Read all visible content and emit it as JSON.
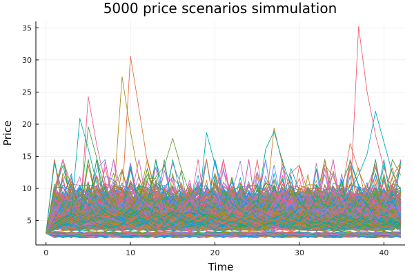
{
  "chart_data": {
    "type": "line",
    "title": "5000 price scenarios simmulation",
    "xlabel": "Time",
    "ylabel": "Price",
    "xlim": [
      -1.2,
      42.5
    ],
    "ylim": [
      1.2,
      36.0
    ],
    "x_ticks": [
      0,
      10,
      20,
      30,
      40
    ],
    "y_ticks": [
      5,
      10,
      15,
      20,
      25,
      30,
      35
    ],
    "grid": true,
    "legend": "none",
    "scenario_count": 5000,
    "time_steps": 42,
    "start_value": 3.0,
    "palette": [
      "#e26f46",
      "#3da44d",
      "#c271d2",
      "#ac8d18",
      "#00a9ad",
      "#ed5e93",
      "#009af9",
      "#c68125",
      "#00a98d",
      "#8e971d",
      "#00a8cb",
      "#9b7fe8",
      "#618df6",
      "#f05f73",
      "#dd64b5",
      "#6b9e32"
    ],
    "series": [
      {
        "values": [
          3.0,
          4.8,
          5.1,
          7.2,
          5.4,
          24.3,
          16.8,
          10.9,
          6.7,
          5.9,
          7.7,
          6.8,
          5.5,
          4.4,
          4.0,
          5.1,
          7.9,
          6.0,
          4.8,
          5.8,
          6.2,
          5.1,
          4.4,
          4.9,
          4.0,
          5.6,
          5.2,
          4.3,
          4.9,
          6.4,
          5.1,
          4.6,
          3.9,
          5.2,
          4.8,
          3.9,
          4.2,
          5.6,
          4.7,
          3.8,
          4.5,
          3.9,
          4.3
        ],
        "color": "#ed5e93"
      },
      {
        "values": [
          3.0,
          4.1,
          5.8,
          4.7,
          6.9,
          5.1,
          7.4,
          6.2,
          8.3,
          27.4,
          18.9,
          11.6,
          8.2,
          6.4,
          5.7,
          5.1,
          6.0,
          7.3,
          5.8,
          4.9,
          5.6,
          6.3,
          5.1,
          4.7,
          4.2,
          5.3,
          4.6,
          6.1,
          5.5,
          4.2,
          4.8,
          5.3,
          4.4,
          3.9,
          4.7,
          5.2,
          4.1,
          4.8,
          5.5,
          4.3,
          4.0,
          4.6,
          4.2
        ],
        "color": "#ac8d18"
      },
      {
        "values": [
          3.0,
          3.9,
          4.6,
          5.3,
          4.8,
          5.7,
          6.6,
          5.9,
          7.1,
          8.4,
          30.6,
          22.4,
          14.1,
          9.3,
          7.6,
          6.2,
          5.4,
          6.1,
          5.3,
          4.9,
          5.8,
          4.6,
          5.1,
          6.2,
          4.8,
          4.4,
          5.3,
          5.7,
          4.6,
          4.1,
          4.9,
          5.4,
          4.3,
          4.8,
          3.9,
          4.5,
          5.1,
          4.4,
          4.1,
          4.7,
          3.9,
          4.3,
          3.8
        ],
        "color": "#e26f46"
      },
      {
        "values": [
          3.0,
          3.7,
          4.9,
          6.3,
          20.9,
          16.2,
          10.8,
          7.9,
          6.6,
          5.8,
          6.9,
          5.7,
          5.2,
          6.1,
          4.9,
          4.4,
          5.6,
          5.1,
          4.6,
          5.3,
          4.7,
          4.2,
          5.0,
          4.5,
          4.1,
          5.2,
          4.8,
          4.4,
          3.9,
          4.6,
          5.1,
          4.3,
          4.0,
          4.7,
          4.2,
          3.8,
          4.4,
          4.9,
          4.1,
          3.9,
          4.5,
          4.2,
          4.0
        ],
        "color": "#00a9ad"
      },
      {
        "values": [
          3.0,
          4.4,
          5.2,
          6.7,
          5.9,
          19.6,
          14.8,
          9.7,
          7.2,
          6.1,
          5.4,
          6.3,
          7.1,
          5.6,
          4.9,
          5.5,
          6.2,
          4.8,
          5.3,
          4.6,
          5.9,
          5.1,
          4.7,
          4.3,
          5.4,
          4.9,
          4.2,
          5.0,
          4.6,
          4.1,
          4.8,
          4.4,
          5.2,
          4.5,
          4.0,
          4.6,
          4.2,
          4.8,
          4.3,
          3.9,
          4.4,
          4.1,
          3.9
        ],
        "color": "#3da44d"
      },
      {
        "values": [
          3.0,
          4.2,
          4.9,
          5.8,
          6.4,
          5.6,
          7.3,
          6.1,
          5.4,
          6.8,
          5.9,
          7.7,
          9.6,
          11.8,
          13.4,
          17.8,
          13.1,
          9.2,
          7.1,
          6.2,
          5.7,
          6.4,
          5.3,
          4.8,
          5.5,
          4.9,
          4.5,
          5.2,
          4.6,
          4.2,
          4.9,
          4.4,
          4.8,
          4.1,
          4.6,
          4.2,
          4.7,
          4.3,
          3.9,
          4.5,
          4.1,
          4.4,
          4.0
        ],
        "color": "#6b9e32"
      },
      {
        "values": [
          3.0,
          4.0,
          5.1,
          4.6,
          5.5,
          6.3,
          5.7,
          6.9,
          5.9,
          6.4,
          7.2,
          6.0,
          5.3,
          6.6,
          5.8,
          5.1,
          6.3,
          5.6,
          4.9,
          5.8,
          6.9,
          5.7,
          4.9,
          5.5,
          6.1,
          5.0,
          6.8,
          19.4,
          13.7,
          9.5,
          7.6,
          6.1,
          5.3,
          4.8,
          5.6,
          4.9,
          4.5,
          5.2,
          4.7,
          4.3,
          4.8,
          4.4,
          4.1
        ],
        "color": "#c68125"
      },
      {
        "values": [
          3.0,
          3.8,
          4.5,
          5.2,
          4.7,
          5.9,
          5.2,
          6.4,
          5.5,
          4.9,
          5.8,
          6.6,
          5.4,
          4.8,
          5.6,
          6.2,
          5.1,
          4.6,
          5.3,
          6.0,
          5.4,
          4.9,
          5.7,
          5.1,
          6.5,
          7.4,
          16.1,
          18.9,
          14.2,
          10.4,
          7.9,
          6.5,
          5.6,
          5.0,
          5.8,
          5.1,
          4.6,
          5.4,
          4.9,
          4.4,
          5.0,
          4.6,
          4.3
        ],
        "color": "#00a98d"
      },
      {
        "values": [
          3.0,
          4.3,
          5.0,
          5.7,
          6.5,
          5.4,
          6.2,
          5.6,
          6.8,
          5.9,
          5.2,
          6.1,
          5.5,
          4.9,
          5.7,
          5.2,
          6.0,
          5.4,
          4.8,
          5.5,
          5.0,
          4.6,
          5.3,
          4.8,
          5.6,
          5.1,
          4.7,
          5.4,
          4.9,
          4.5,
          5.2,
          4.7,
          5.5,
          4.9,
          5.8,
          6.4,
          7.9,
          35.2,
          25.1,
          18.3,
          13.2,
          9.8,
          7.6
        ],
        "color": "#f05f73"
      },
      {
        "values": [
          3.0,
          4.1,
          4.8,
          5.5,
          5.0,
          5.8,
          6.5,
          5.7,
          6.3,
          5.4,
          6.1,
          5.5,
          4.9,
          5.6,
          5.1,
          5.8,
          5.3,
          4.8,
          5.5,
          4.9,
          5.4,
          5.0,
          4.6,
          5.2,
          4.7,
          5.3,
          4.9,
          5.5,
          5.0,
          4.6,
          5.3,
          4.8,
          5.4,
          5.9,
          6.6,
          7.8,
          9.4,
          12.1,
          15.3,
          22.0,
          17.2,
          12.4,
          9.6
        ],
        "color": "#00a8cb"
      },
      {
        "values": [
          3.0,
          4.5,
          5.3,
          6.1,
          5.5,
          6.4,
          5.8,
          6.9,
          6.2,
          5.6,
          6.7,
          6.0,
          5.4,
          6.2,
          5.6,
          6.5,
          5.9,
          5.3,
          6.1,
          18.7,
          13.8,
          9.9,
          7.7,
          6.5,
          5.8,
          6.6,
          5.9,
          5.3,
          6.0,
          5.4,
          4.9,
          5.6,
          5.0,
          4.6,
          5.3,
          4.8,
          5.5,
          5.0,
          4.6,
          5.2,
          4.7,
          4.4,
          4.2
        ],
        "color": "#00a9ad"
      },
      {
        "values": [
          3.0,
          4.2,
          5.0,
          5.6,
          5.1,
          5.9,
          5.3,
          6.1,
          5.5,
          6.3,
          5.7,
          5.1,
          5.9,
          5.3,
          6.0,
          5.4,
          4.9,
          5.7,
          5.1,
          5.8,
          5.2,
          4.8,
          5.6,
          5.0,
          5.7,
          6.4,
          7.3,
          8.4,
          7.1,
          6.2,
          5.6,
          6.5,
          5.8,
          5.2,
          6.0,
          6.8,
          8.1,
          9.7,
          8.3,
          7.0,
          8.6,
          10.4,
          13.6
        ],
        "color": "#ac8d18"
      },
      {
        "values": [
          3.0,
          3.9,
          4.6,
          5.4,
          4.9,
          5.6,
          6.3,
          5.5,
          6.2,
          5.6,
          5.0,
          5.8,
          5.2,
          6.0,
          5.4,
          4.8,
          5.5,
          5.0,
          5.7,
          5.1,
          4.7,
          5.4,
          4.9,
          5.6,
          5.0,
          4.6,
          5.3,
          4.8,
          5.5,
          5.0,
          4.6,
          5.3,
          4.9,
          5.6,
          6.7,
          9.2,
          17.0,
          12.8,
          9.6,
          7.8,
          6.7,
          6.0,
          5.5
        ],
        "color": "#e26f46"
      },
      {
        "values": [
          3.0,
          2.7,
          2.6,
          2.7,
          2.6,
          2.8,
          2.7,
          2.6,
          2.7,
          2.9,
          2.7,
          2.6,
          2.8,
          2.7,
          2.6,
          2.8,
          2.6,
          2.7,
          2.9,
          2.7,
          2.6,
          2.8,
          2.7,
          2.6,
          2.7,
          2.9,
          2.7,
          2.6,
          2.8,
          2.7,
          2.6,
          2.7,
          2.9,
          2.7,
          2.6,
          2.8,
          2.7,
          2.6,
          2.8,
          2.7,
          2.6,
          2.7,
          2.6
        ],
        "color": "#00a98d"
      },
      {
        "values": [
          3.0,
          2.6,
          2.5,
          2.6,
          2.5,
          2.7,
          2.6,
          2.5,
          2.7,
          2.6,
          2.5,
          2.6,
          2.7,
          2.6,
          2.5,
          2.6,
          2.7,
          2.5,
          2.6,
          2.7,
          2.6,
          2.5,
          2.7,
          2.6,
          2.5,
          2.6,
          2.7,
          2.5,
          2.6,
          2.7,
          2.6,
          2.5,
          2.6,
          2.7,
          2.5,
          2.6,
          2.7,
          2.6,
          2.5,
          2.6,
          2.7,
          2.5,
          2.6
        ],
        "color": "#009af9"
      },
      {
        "values": [
          3.0,
          2.8,
          2.7,
          2.8,
          2.6,
          2.8,
          2.9,
          2.7,
          2.6,
          2.8,
          2.9,
          2.7,
          2.8,
          2.6,
          2.8,
          2.9,
          2.7,
          2.8,
          2.6,
          2.8,
          2.9,
          2.7,
          2.6,
          2.8,
          2.7,
          2.9,
          2.8,
          2.6,
          2.7,
          2.9,
          2.8,
          2.6,
          2.8,
          2.7,
          2.9,
          2.6,
          2.8,
          2.7,
          2.6,
          2.8,
          2.9,
          2.7,
          2.8
        ],
        "color": "#c271d2"
      }
    ]
  }
}
